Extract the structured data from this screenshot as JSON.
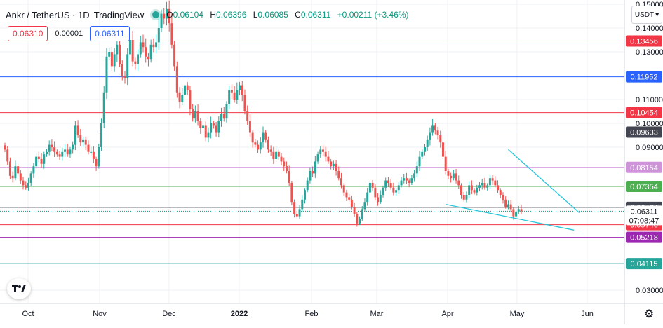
{
  "header": {
    "symbol": "Ankr / TetherUS · 1D",
    "logo_text": "TradingView",
    "ohlc": {
      "o_label": "O",
      "o": "0.06104",
      "h_label": "H",
      "h": "0.06396",
      "l_label": "L",
      "l": "0.06085",
      "c_label": "C",
      "c": "0.06311",
      "change": "+0.00211 (+3.46%)"
    }
  },
  "trade": {
    "sell": "0.06310",
    "spread": "0.00001",
    "buy": "0.06311"
  },
  "currency": "USDT",
  "colors": {
    "up": "#26a69a",
    "down": "#ef5350",
    "trendline": "#26c6da"
  },
  "chart_data": {
    "type": "candlestick",
    "y_ticks": [
      "0.15000",
      "0.14000",
      "0.13000",
      "0.11000",
      "0.10000",
      "0.09000",
      "0.03000"
    ],
    "x_ticks": [
      "Oct",
      "Nov",
      "Dec",
      "2022",
      "Feb",
      "Mar",
      "Apr",
      "May",
      "Jun"
    ],
    "hlines": [
      {
        "value": 0.13456,
        "label": "0.13456",
        "color": "#f23645"
      },
      {
        "value": 0.11952,
        "label": "0.11952",
        "color": "#2962ff"
      },
      {
        "value": 0.10454,
        "label": "0.10454",
        "color": "#f23645"
      },
      {
        "value": 0.09633,
        "label": "0.09633",
        "color": "#434651"
      },
      {
        "value": 0.08154,
        "label": "0.08154",
        "color": "#ce93d8"
      },
      {
        "value": 0.07354,
        "label": "0.07354",
        "color": "#4caf50"
      },
      {
        "value": 0.06474,
        "label": "0.06474",
        "color": "#434651"
      },
      {
        "value": 0.05746,
        "label": "0.05746",
        "color": "#f23645"
      },
      {
        "value": 0.05218,
        "label": "0.05218",
        "color": "#9c27b0"
      },
      {
        "value": 0.04115,
        "label": "0.04115",
        "color": "#26a69a"
      }
    ],
    "last_price": {
      "value": 0.06311,
      "label": "0.06311",
      "countdown": "07:08:47"
    },
    "trendlines": [
      {
        "from": [
          193,
          0.089
        ],
        "to": [
          217,
          0.0625
        ]
      },
      {
        "from": [
          169,
          0.066
        ],
        "to": [
          215,
          0.0552
        ]
      }
    ],
    "closes": [
      0.089,
      0.084,
      0.078,
      0.077,
      0.082,
      0.079,
      0.076,
      0.074,
      0.073,
      0.075,
      0.079,
      0.082,
      0.086,
      0.085,
      0.083,
      0.087,
      0.088,
      0.091,
      0.09,
      0.088,
      0.087,
      0.086,
      0.088,
      0.089,
      0.087,
      0.089,
      0.091,
      0.099,
      0.095,
      0.092,
      0.093,
      0.091,
      0.088,
      0.088,
      0.085,
      0.082,
      0.09,
      0.1,
      0.113,
      0.128,
      0.13,
      0.124,
      0.129,
      0.133,
      0.125,
      0.12,
      0.119,
      0.129,
      0.135,
      0.126,
      0.125,
      0.129,
      0.134,
      0.132,
      0.128,
      0.127,
      0.133,
      0.132,
      0.134,
      0.14,
      0.146,
      0.144,
      0.148,
      0.142,
      0.133,
      0.124,
      0.113,
      0.109,
      0.112,
      0.116,
      0.114,
      0.106,
      0.102,
      0.105,
      0.101,
      0.098,
      0.099,
      0.094,
      0.096,
      0.1,
      0.099,
      0.096,
      0.101,
      0.104,
      0.102,
      0.108,
      0.114,
      0.113,
      0.11,
      0.114,
      0.116,
      0.112,
      0.105,
      0.101,
      0.096,
      0.092,
      0.091,
      0.089,
      0.092,
      0.096,
      0.093,
      0.089,
      0.088,
      0.085,
      0.088,
      0.086,
      0.084,
      0.082,
      0.08,
      0.075,
      0.067,
      0.062,
      0.061,
      0.064,
      0.068,
      0.072,
      0.076,
      0.08,
      0.079,
      0.084,
      0.087,
      0.089,
      0.088,
      0.086,
      0.084,
      0.082,
      0.083,
      0.08,
      0.077,
      0.074,
      0.071,
      0.069,
      0.068,
      0.065,
      0.062,
      0.058,
      0.06,
      0.064,
      0.067,
      0.071,
      0.075,
      0.073,
      0.069,
      0.067,
      0.07,
      0.073,
      0.076,
      0.075,
      0.073,
      0.071,
      0.072,
      0.074,
      0.076,
      0.077,
      0.076,
      0.075,
      0.077,
      0.079,
      0.082,
      0.086,
      0.088,
      0.09,
      0.093,
      0.096,
      0.099,
      0.097,
      0.095,
      0.092,
      0.086,
      0.08,
      0.078,
      0.077,
      0.079,
      0.076,
      0.074,
      0.07,
      0.068,
      0.07,
      0.074,
      0.072,
      0.071,
      0.073,
      0.074,
      0.075,
      0.073,
      0.074,
      0.077,
      0.076,
      0.074,
      0.072,
      0.07,
      0.068,
      0.065,
      0.066,
      0.064,
      0.061,
      0.063,
      0.064,
      0.0631
    ]
  }
}
